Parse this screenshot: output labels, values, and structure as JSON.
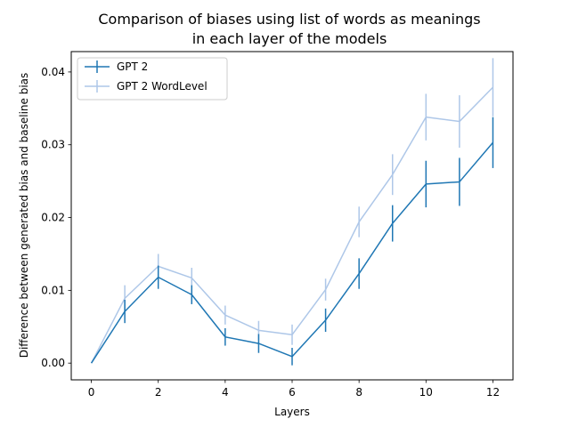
{
  "chart_data": {
    "type": "line",
    "title_line1": "Comparison of biases using list of words as meanings",
    "title_line2": "in each layer of the models",
    "xlabel": "Layers",
    "ylabel": "Difference between generated bias and baseline bias",
    "xlim": [
      -0.6,
      12.6
    ],
    "ylim": [
      -0.0023,
      0.0428
    ],
    "xticks": [
      0,
      2,
      4,
      6,
      8,
      10,
      12
    ],
    "xtick_labels": [
      "0",
      "2",
      "4",
      "6",
      "8",
      "10",
      "12"
    ],
    "yticks": [
      0.0,
      0.01,
      0.02,
      0.03,
      0.04
    ],
    "ytick_labels": [
      "0.00",
      "0.01",
      "0.02",
      "0.03",
      "0.04"
    ],
    "grid": false,
    "legend_position": "upper-left",
    "x": [
      0,
      1,
      2,
      3,
      4,
      5,
      6,
      7,
      8,
      9,
      10,
      11,
      12
    ],
    "series": [
      {
        "name": "GPT 2",
        "color": "#1f77b4",
        "values": [
          0.0,
          0.0071,
          0.0118,
          0.0094,
          0.0036,
          0.0027,
          0.0009,
          0.0059,
          0.0123,
          0.0192,
          0.0246,
          0.0249,
          0.0303
        ],
        "errors": [
          0.0,
          0.0016,
          0.0016,
          0.0013,
          0.0012,
          0.0013,
          0.0012,
          0.0016,
          0.0021,
          0.0025,
          0.0032,
          0.0033,
          0.0035
        ]
      },
      {
        "name": "GPT 2 WordLevel",
        "color": "#aec7e8",
        "values": [
          0.0,
          0.0089,
          0.0133,
          0.0117,
          0.0066,
          0.0045,
          0.0039,
          0.0101,
          0.0194,
          0.0259,
          0.0338,
          0.0332,
          0.0379
        ],
        "errors": [
          0.0,
          0.0018,
          0.0017,
          0.0014,
          0.0013,
          0.0013,
          0.0014,
          0.0015,
          0.0021,
          0.0028,
          0.0032,
          0.0036,
          0.004
        ]
      }
    ]
  }
}
